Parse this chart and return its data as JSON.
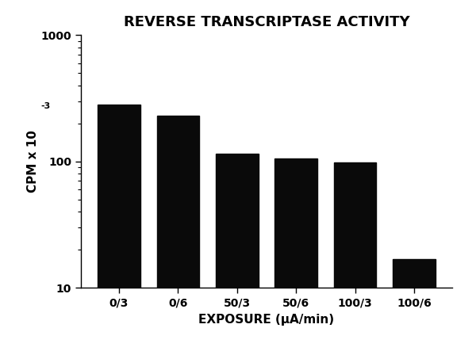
{
  "title": "REVERSE TRANSCRIPTASE ACTIVITY",
  "xlabel": "EXPOSURE (μA/min)",
  "ylabel": "CPM x 10",
  "ylabel_exp": "-3",
  "categories": [
    "0/3",
    "0/6",
    "50/3",
    "50/6",
    "100/3",
    "100/6"
  ],
  "values": [
    280,
    230,
    115,
    105,
    98,
    17
  ],
  "bar_color": "#0a0a0a",
  "background_color": "#ffffff",
  "ylim_min": 10,
  "ylim_max": 1000,
  "title_fontsize": 13,
  "label_fontsize": 11,
  "tick_fontsize": 10,
  "figsize": [
    6.0,
    4.43
  ],
  "dpi": 100
}
